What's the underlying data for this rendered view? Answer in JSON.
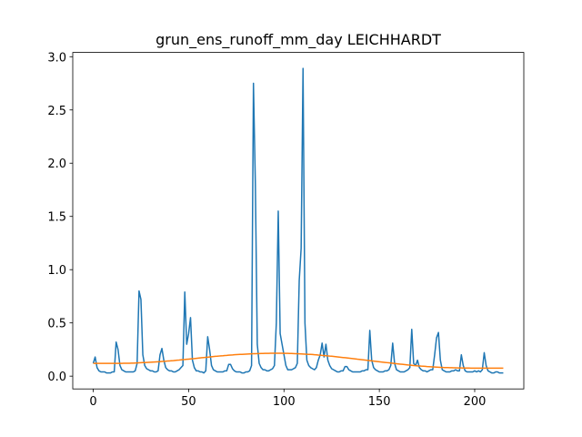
{
  "chart_data": {
    "type": "line",
    "title": "grun_ens_runoff_mm_day LEICHHARDT",
    "x": [
      0,
      1,
      2,
      3,
      4,
      5,
      6,
      7,
      8,
      9,
      10,
      11,
      12,
      13,
      14,
      15,
      16,
      17,
      18,
      19,
      20,
      21,
      22,
      23,
      24,
      25,
      26,
      27,
      28,
      29,
      30,
      31,
      32,
      33,
      34,
      35,
      36,
      37,
      38,
      39,
      40,
      41,
      42,
      43,
      44,
      45,
      46,
      47,
      48,
      49,
      50,
      51,
      52,
      53,
      54,
      55,
      56,
      57,
      58,
      59,
      60,
      61,
      62,
      63,
      64,
      65,
      66,
      67,
      68,
      69,
      70,
      71,
      72,
      73,
      74,
      75,
      76,
      77,
      78,
      79,
      80,
      81,
      82,
      83,
      84,
      85,
      86,
      87,
      88,
      89,
      90,
      91,
      92,
      93,
      94,
      95,
      96,
      97,
      98,
      99,
      100,
      101,
      102,
      103,
      104,
      105,
      106,
      107,
      108,
      109,
      110,
      111,
      112,
      113,
      114,
      115,
      116,
      117,
      118,
      119,
      120,
      121,
      122,
      123,
      124,
      125,
      126,
      127,
      128,
      129,
      130,
      131,
      132,
      133,
      134,
      135,
      136,
      137,
      138,
      139,
      140,
      141,
      142,
      143,
      144,
      145,
      146,
      147,
      148,
      149,
      150,
      151,
      152,
      153,
      154,
      155,
      156,
      157,
      158,
      159,
      160,
      161,
      162,
      163,
      164,
      165,
      166,
      167,
      168,
      169,
      170,
      171,
      172,
      173,
      174,
      175,
      176,
      177,
      178,
      179,
      180,
      181,
      182,
      183,
      184,
      185,
      186,
      187,
      188,
      189,
      190,
      191,
      192,
      193,
      194,
      195,
      196,
      197,
      198,
      199,
      200,
      201,
      202,
      203,
      204,
      205,
      206,
      207,
      208,
      209,
      210,
      211,
      212,
      213,
      214,
      215
    ],
    "series": [
      {
        "color": "#1f77b4",
        "values": [
          0.12,
          0.18,
          0.08,
          0.05,
          0.04,
          0.04,
          0.04,
          0.03,
          0.03,
          0.03,
          0.04,
          0.04,
          0.32,
          0.25,
          0.1,
          0.06,
          0.05,
          0.04,
          0.04,
          0.04,
          0.04,
          0.04,
          0.05,
          0.12,
          0.8,
          0.72,
          0.2,
          0.1,
          0.07,
          0.06,
          0.05,
          0.05,
          0.04,
          0.04,
          0.05,
          0.2,
          0.26,
          0.15,
          0.08,
          0.06,
          0.05,
          0.05,
          0.04,
          0.04,
          0.05,
          0.06,
          0.08,
          0.1,
          0.79,
          0.3,
          0.4,
          0.55,
          0.15,
          0.08,
          0.05,
          0.05,
          0.04,
          0.04,
          0.03,
          0.05,
          0.37,
          0.25,
          0.1,
          0.06,
          0.05,
          0.04,
          0.04,
          0.04,
          0.04,
          0.05,
          0.05,
          0.11,
          0.11,
          0.07,
          0.05,
          0.04,
          0.04,
          0.04,
          0.03,
          0.03,
          0.04,
          0.04,
          0.05,
          0.1,
          2.75,
          1.8,
          0.3,
          0.12,
          0.08,
          0.06,
          0.06,
          0.05,
          0.05,
          0.06,
          0.07,
          0.1,
          0.5,
          1.55,
          0.4,
          0.3,
          0.2,
          0.1,
          0.06,
          0.06,
          0.06,
          0.07,
          0.08,
          0.12,
          0.9,
          1.2,
          2.89,
          0.5,
          0.15,
          0.1,
          0.08,
          0.07,
          0.06,
          0.08,
          0.15,
          0.2,
          0.31,
          0.18,
          0.3,
          0.15,
          0.1,
          0.07,
          0.06,
          0.05,
          0.04,
          0.04,
          0.05,
          0.05,
          0.09,
          0.09,
          0.06,
          0.05,
          0.04,
          0.04,
          0.04,
          0.04,
          0.04,
          0.05,
          0.05,
          0.06,
          0.06,
          0.43,
          0.15,
          0.08,
          0.06,
          0.05,
          0.04,
          0.04,
          0.04,
          0.05,
          0.05,
          0.06,
          0.1,
          0.31,
          0.12,
          0.06,
          0.05,
          0.04,
          0.04,
          0.04,
          0.05,
          0.06,
          0.08,
          0.44,
          0.12,
          0.1,
          0.15,
          0.08,
          0.06,
          0.05,
          0.05,
          0.04,
          0.05,
          0.06,
          0.06,
          0.2,
          0.36,
          0.41,
          0.15,
          0.06,
          0.05,
          0.04,
          0.04,
          0.04,
          0.05,
          0.05,
          0.06,
          0.05,
          0.05,
          0.2,
          0.1,
          0.05,
          0.04,
          0.04,
          0.04,
          0.04,
          0.05,
          0.04,
          0.05,
          0.04,
          0.06,
          0.22,
          0.1,
          0.05,
          0.04,
          0.03,
          0.03,
          0.04,
          0.04,
          0.03,
          0.03,
          0.03
        ]
      },
      {
        "color": "#ff7f0e",
        "values": [
          0.12,
          0.12,
          0.12,
          0.12,
          0.12,
          0.12,
          0.12,
          0.12,
          0.12,
          0.12,
          0.12,
          0.12,
          0.12,
          0.12,
          0.12,
          0.12,
          0.121,
          0.121,
          0.121,
          0.121,
          0.122,
          0.122,
          0.123,
          0.124,
          0.125,
          0.126,
          0.127,
          0.128,
          0.129,
          0.13,
          0.131,
          0.132,
          0.133,
          0.134,
          0.135,
          0.136,
          0.138,
          0.139,
          0.14,
          0.142,
          0.143,
          0.145,
          0.146,
          0.148,
          0.15,
          0.151,
          0.153,
          0.155,
          0.156,
          0.158,
          0.16,
          0.162,
          0.164,
          0.165,
          0.167,
          0.169,
          0.171,
          0.173,
          0.175,
          0.177,
          0.178,
          0.18,
          0.182,
          0.184,
          0.186,
          0.187,
          0.189,
          0.191,
          0.192,
          0.194,
          0.195,
          0.197,
          0.198,
          0.199,
          0.201,
          0.202,
          0.203,
          0.204,
          0.205,
          0.206,
          0.207,
          0.208,
          0.209,
          0.21,
          0.211,
          0.211,
          0.212,
          0.212,
          0.213,
          0.213,
          0.214,
          0.214,
          0.214,
          0.215,
          0.215,
          0.215,
          0.215,
          0.215,
          0.215,
          0.215,
          0.214,
          0.214,
          0.214,
          0.213,
          0.213,
          0.212,
          0.211,
          0.211,
          0.21,
          0.209,
          0.208,
          0.207,
          0.206,
          0.205,
          0.204,
          0.203,
          0.201,
          0.2,
          0.198,
          0.197,
          0.195,
          0.194,
          0.192,
          0.19,
          0.188,
          0.187,
          0.185,
          0.183,
          0.181,
          0.179,
          0.177,
          0.175,
          0.173,
          0.171,
          0.169,
          0.167,
          0.165,
          0.163,
          0.161,
          0.158,
          0.156,
          0.154,
          0.152,
          0.15,
          0.148,
          0.146,
          0.144,
          0.141,
          0.139,
          0.137,
          0.135,
          0.133,
          0.131,
          0.129,
          0.127,
          0.125,
          0.123,
          0.121,
          0.119,
          0.117,
          0.115,
          0.113,
          0.111,
          0.109,
          0.107,
          0.105,
          0.104,
          0.102,
          0.1,
          0.099,
          0.097,
          0.096,
          0.094,
          0.093,
          0.092,
          0.09,
          0.089,
          0.088,
          0.087,
          0.086,
          0.085,
          0.084,
          0.083,
          0.082,
          0.081,
          0.081,
          0.08,
          0.079,
          0.079,
          0.078,
          0.078,
          0.077,
          0.077,
          0.077,
          0.076,
          0.076,
          0.076,
          0.076,
          0.075,
          0.075,
          0.075,
          0.075,
          0.075,
          0.075,
          0.075,
          0.075,
          0.075,
          0.075,
          0.075,
          0.075,
          0.075,
          0.075,
          0.075,
          0.075,
          0.075,
          0.075
        ]
      }
    ],
    "xlim": [
      -10.75,
      225.75
    ],
    "xticks": [
      0,
      50,
      100,
      150,
      200
    ],
    "ylim": [
      -0.12,
      3.04
    ],
    "yticks": [
      {
        "value": 0,
        "label": "0.0"
      },
      0.5,
      {
        "value": 1,
        "label": "1.0"
      },
      1.5,
      {
        "value": 2,
        "label": "2.0"
      },
      2.5,
      {
        "value": 3,
        "label": "3.0"
      }
    ]
  }
}
